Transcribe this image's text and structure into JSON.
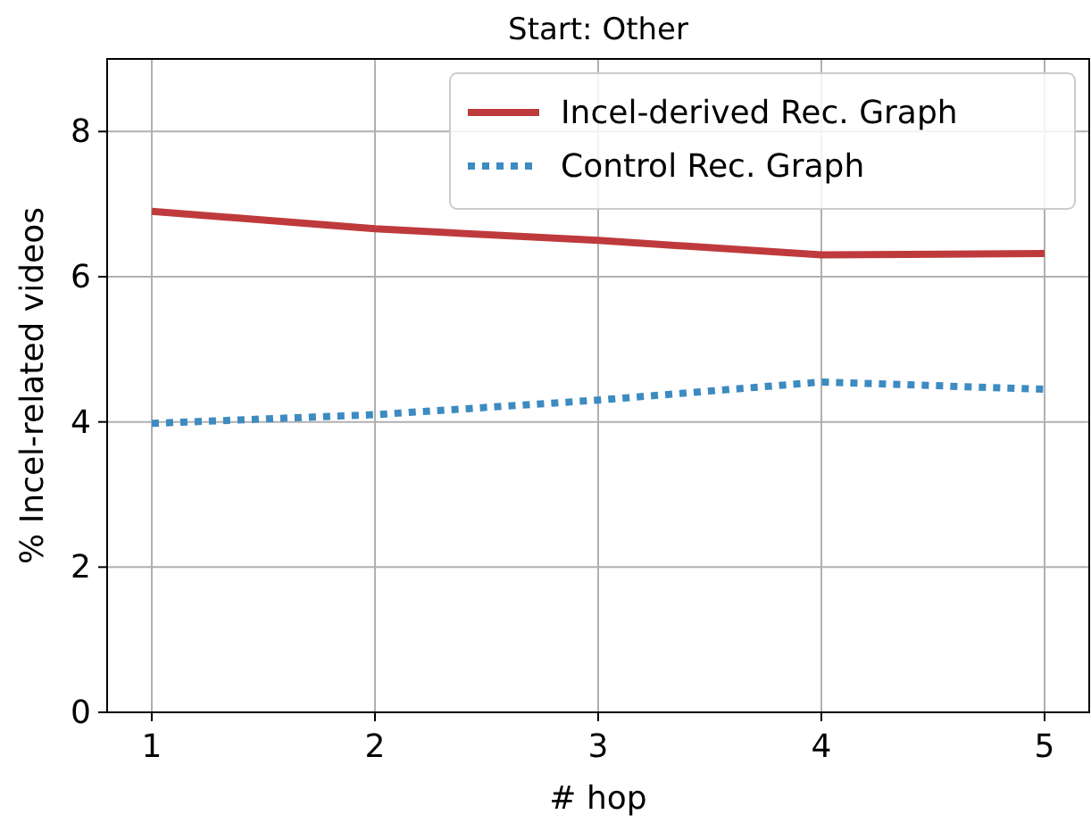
{
  "chart_data": {
    "type": "line",
    "title": "Start: Other",
    "xlabel": "# hop",
    "ylabel": "% Incel-related videos",
    "x": [
      1,
      2,
      3,
      4,
      5
    ],
    "series": [
      {
        "name": "Incel-derived Rec. Graph",
        "color": "#bf3a3c",
        "values": [
          6.9,
          6.66,
          6.5,
          6.3,
          6.32
        ],
        "line_style": "solid"
      },
      {
        "name": "Control Rec. Graph",
        "color": "#3d8bc0",
        "values": [
          3.98,
          4.1,
          4.3,
          4.55,
          4.45
        ],
        "line_style": "dotted"
      }
    ],
    "xlim": [
      0.8,
      5.2
    ],
    "xticks": [
      1,
      2,
      3,
      4,
      5
    ],
    "ylim": [
      0,
      9
    ],
    "yticks": [
      0,
      2,
      4,
      6,
      8
    ],
    "grid": true,
    "legend": "top right"
  }
}
